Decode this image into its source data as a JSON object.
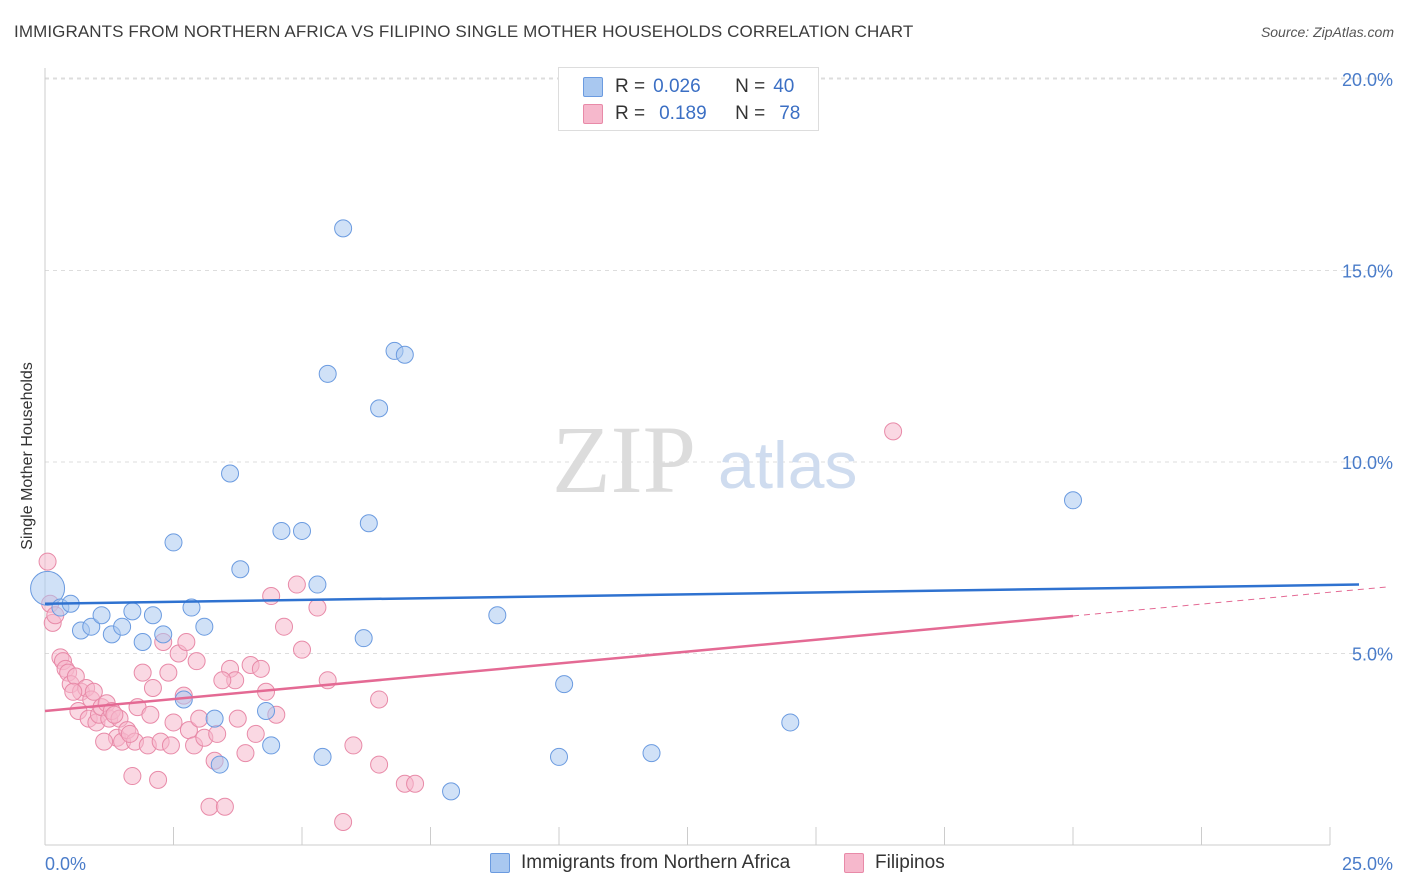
{
  "header": {
    "title": "IMMIGRANTS FROM NORTHERN AFRICA VS FILIPINO SINGLE MOTHER HOUSEHOLDS CORRELATION CHART",
    "source": "Source: ZipAtlas.com"
  },
  "watermark": {
    "zip": "ZIP",
    "atlas": "atlas"
  },
  "legend": {
    "rows": [
      {
        "r_key": "R =",
        "r_value": "0.026",
        "n_key": "N =",
        "n_value": "40"
      },
      {
        "r_key": "R =",
        "r_value": "0.189",
        "n_key": "N =",
        "n_value": "78"
      }
    ]
  },
  "colors": {
    "blue_fill": "#a9c8f0",
    "blue_stroke": "#6b9be0",
    "blue_line": "#2f72d0",
    "pink_fill": "#f6b8cc",
    "pink_stroke": "#e88aa8",
    "pink_line": "#e46a94",
    "grid": "#dddddd",
    "tick_text": "#4a7cc9"
  },
  "chart_data": {
    "type": "scatter",
    "title": "IMMIGRANTS FROM NORTHERN AFRICA VS FILIPINO SINGLE MOTHER HOUSEHOLDS CORRELATION CHART",
    "xlabel": "",
    "ylabel": "Single Mother Households",
    "xlim": [
      0,
      25
    ],
    "ylim": [
      0,
      20.5
    ],
    "x_tick_labels": {
      "left": "0.0%",
      "right": "25.0%"
    },
    "y_ticks": [
      {
        "value": 5,
        "label": "5.0%"
      },
      {
        "value": 10,
        "label": "10.0%"
      },
      {
        "value": 15,
        "label": "15.0%"
      },
      {
        "value": 20,
        "label": "20.0%"
      }
    ],
    "grid": true,
    "series": [
      {
        "name": "Immigrants from Northern Africa",
        "color": "blue",
        "trend": {
          "x0": 0,
          "y0": 6.3,
          "x1": 25,
          "y1": 6.8,
          "dashed_from": null
        },
        "points": [
          {
            "x": 0.05,
            "y": 6.7,
            "big": true
          },
          {
            "x": 0.3,
            "y": 6.2
          },
          {
            "x": 0.5,
            "y": 6.3
          },
          {
            "x": 0.7,
            "y": 5.6
          },
          {
            "x": 0.9,
            "y": 5.7
          },
          {
            "x": 1.1,
            "y": 6.0
          },
          {
            "x": 1.3,
            "y": 5.5
          },
          {
            "x": 1.5,
            "y": 5.7
          },
          {
            "x": 1.7,
            "y": 6.1
          },
          {
            "x": 1.9,
            "y": 5.3
          },
          {
            "x": 2.1,
            "y": 6.0
          },
          {
            "x": 2.3,
            "y": 5.5
          },
          {
            "x": 2.5,
            "y": 7.9
          },
          {
            "x": 2.7,
            "y": 3.8
          },
          {
            "x": 2.85,
            "y": 6.2
          },
          {
            "x": 3.1,
            "y": 5.7
          },
          {
            "x": 3.3,
            "y": 3.3
          },
          {
            "x": 3.4,
            "y": 2.1
          },
          {
            "x": 3.6,
            "y": 9.7
          },
          {
            "x": 3.8,
            "y": 7.2
          },
          {
            "x": 4.3,
            "y": 3.5
          },
          {
            "x": 4.4,
            "y": 2.6
          },
          {
            "x": 4.6,
            "y": 8.2
          },
          {
            "x": 5.0,
            "y": 8.2
          },
          {
            "x": 5.3,
            "y": 6.8
          },
          {
            "x": 5.4,
            "y": 2.3
          },
          {
            "x": 5.5,
            "y": 12.3
          },
          {
            "x": 5.8,
            "y": 16.1
          },
          {
            "x": 6.2,
            "y": 5.4
          },
          {
            "x": 6.3,
            "y": 8.4
          },
          {
            "x": 6.5,
            "y": 11.4
          },
          {
            "x": 6.8,
            "y": 12.9
          },
          {
            "x": 7.0,
            "y": 12.8
          },
          {
            "x": 7.9,
            "y": 1.4
          },
          {
            "x": 8.8,
            "y": 6.0
          },
          {
            "x": 10.0,
            "y": 2.3
          },
          {
            "x": 10.1,
            "y": 4.2
          },
          {
            "x": 11.8,
            "y": 2.4
          },
          {
            "x": 14.5,
            "y": 3.2
          },
          {
            "x": 20.0,
            "y": 9.0
          }
        ]
      },
      {
        "name": "Filipinos",
        "color": "pink",
        "trend": {
          "x0": 0,
          "y0": 3.5,
          "x1": 25,
          "y1": 6.6,
          "dashed_from": 20
        },
        "points": [
          {
            "x": 0.05,
            "y": 7.4
          },
          {
            "x": 0.1,
            "y": 6.3
          },
          {
            "x": 0.15,
            "y": 5.8
          },
          {
            "x": 0.2,
            "y": 6.0
          },
          {
            "x": 0.3,
            "y": 4.9
          },
          {
            "x": 0.35,
            "y": 4.8
          },
          {
            "x": 0.4,
            "y": 4.6
          },
          {
            "x": 0.45,
            "y": 4.5
          },
          {
            "x": 0.5,
            "y": 4.2
          },
          {
            "x": 0.6,
            "y": 4.4
          },
          {
            "x": 0.65,
            "y": 3.5
          },
          {
            "x": 0.7,
            "y": 4.0
          },
          {
            "x": 0.8,
            "y": 4.1
          },
          {
            "x": 0.85,
            "y": 3.3
          },
          {
            "x": 0.9,
            "y": 3.8
          },
          {
            "x": 0.95,
            "y": 4.0
          },
          {
            "x": 1.0,
            "y": 3.2
          },
          {
            "x": 1.05,
            "y": 3.4
          },
          {
            "x": 1.1,
            "y": 3.6
          },
          {
            "x": 1.2,
            "y": 3.7
          },
          {
            "x": 1.25,
            "y": 3.3
          },
          {
            "x": 1.3,
            "y": 3.5
          },
          {
            "x": 1.4,
            "y": 2.8
          },
          {
            "x": 1.45,
            "y": 3.3
          },
          {
            "x": 1.5,
            "y": 2.7
          },
          {
            "x": 1.6,
            "y": 3.0
          },
          {
            "x": 1.7,
            "y": 1.8
          },
          {
            "x": 1.75,
            "y": 2.7
          },
          {
            "x": 1.8,
            "y": 3.6
          },
          {
            "x": 1.9,
            "y": 4.5
          },
          {
            "x": 2.0,
            "y": 2.6
          },
          {
            "x": 2.05,
            "y": 3.4
          },
          {
            "x": 2.1,
            "y": 4.1
          },
          {
            "x": 2.2,
            "y": 1.7
          },
          {
            "x": 2.25,
            "y": 2.7
          },
          {
            "x": 2.3,
            "y": 5.3
          },
          {
            "x": 2.4,
            "y": 4.5
          },
          {
            "x": 2.5,
            "y": 3.2
          },
          {
            "x": 2.6,
            "y": 5.0
          },
          {
            "x": 2.7,
            "y": 3.9
          },
          {
            "x": 2.75,
            "y": 5.3
          },
          {
            "x": 2.8,
            "y": 3.0
          },
          {
            "x": 2.9,
            "y": 2.6
          },
          {
            "x": 2.95,
            "y": 4.8
          },
          {
            "x": 3.0,
            "y": 3.3
          },
          {
            "x": 3.1,
            "y": 2.8
          },
          {
            "x": 3.2,
            "y": 1.0
          },
          {
            "x": 3.3,
            "y": 2.2
          },
          {
            "x": 3.35,
            "y": 2.9
          },
          {
            "x": 3.5,
            "y": 1.0
          },
          {
            "x": 3.6,
            "y": 4.6
          },
          {
            "x": 3.7,
            "y": 4.3
          },
          {
            "x": 3.75,
            "y": 3.3
          },
          {
            "x": 3.9,
            "y": 2.4
          },
          {
            "x": 4.0,
            "y": 4.7
          },
          {
            "x": 4.2,
            "y": 4.6
          },
          {
            "x": 4.3,
            "y": 4.0
          },
          {
            "x": 4.4,
            "y": 6.5
          },
          {
            "x": 4.5,
            "y": 3.4
          },
          {
            "x": 4.65,
            "y": 5.7
          },
          {
            "x": 4.9,
            "y": 6.8
          },
          {
            "x": 5.0,
            "y": 5.1
          },
          {
            "x": 5.3,
            "y": 6.2
          },
          {
            "x": 5.5,
            "y": 4.3
          },
          {
            "x": 5.8,
            "y": 0.6
          },
          {
            "x": 6.0,
            "y": 2.6
          },
          {
            "x": 6.5,
            "y": 3.8
          },
          {
            "x": 6.5,
            "y": 2.1
          },
          {
            "x": 7.0,
            "y": 1.6
          },
          {
            "x": 7.2,
            "y": 1.6
          },
          {
            "x": 1.35,
            "y": 3.4
          },
          {
            "x": 0.55,
            "y": 4.0
          },
          {
            "x": 1.15,
            "y": 2.7
          },
          {
            "x": 2.45,
            "y": 2.6
          },
          {
            "x": 3.45,
            "y": 4.3
          },
          {
            "x": 4.1,
            "y": 2.9
          },
          {
            "x": 1.65,
            "y": 2.9
          },
          {
            "x": 16.5,
            "y": 10.8
          }
        ]
      }
    ]
  },
  "bottom_legend": {
    "items": [
      {
        "label": "Immigrants from Northern Africa"
      },
      {
        "label": "Filipinos"
      }
    ]
  }
}
